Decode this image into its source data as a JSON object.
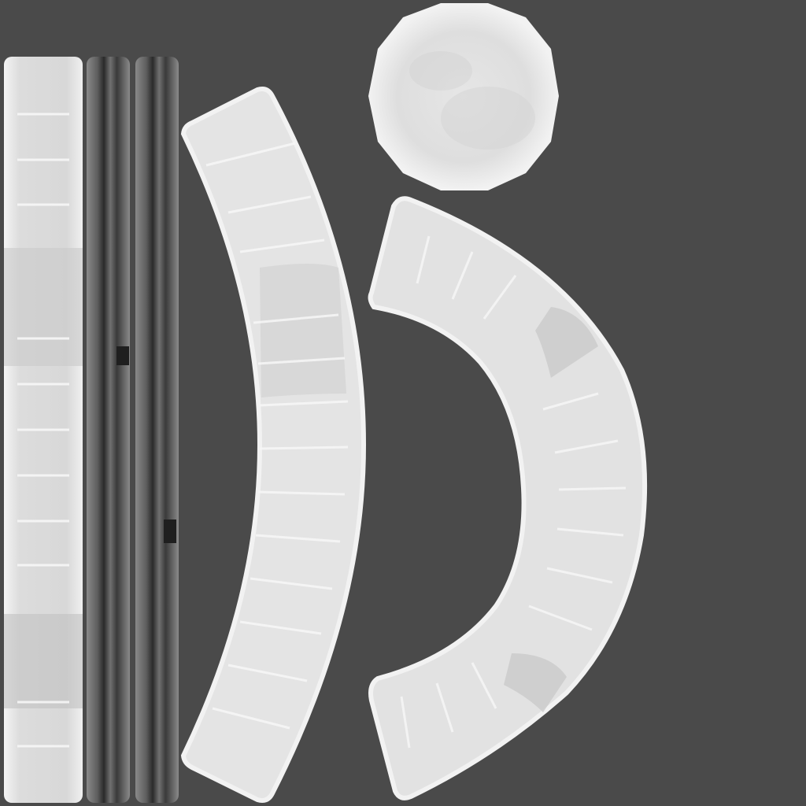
{
  "texture_atlas": {
    "background_color": "#4a4a4a",
    "stone_light_color": "#ededed",
    "stone_mid_color": "#d6d6d6",
    "stone_shadow_color": "#b8b8b8",
    "rail_dark_color": "#2e2e2e",
    "rail_mid_color": "#6e6e6e",
    "pieces": [
      {
        "name": "straight-stone-strip",
        "kind": "strip"
      },
      {
        "name": "dark-rail-strip-left",
        "kind": "rail"
      },
      {
        "name": "dark-rail-strip-right",
        "kind": "rail"
      },
      {
        "name": "curved-stone-arc-left",
        "kind": "arc"
      },
      {
        "name": "round-stone-cap",
        "kind": "disc"
      },
      {
        "name": "curved-stone-arc-right",
        "kind": "arc"
      }
    ]
  }
}
